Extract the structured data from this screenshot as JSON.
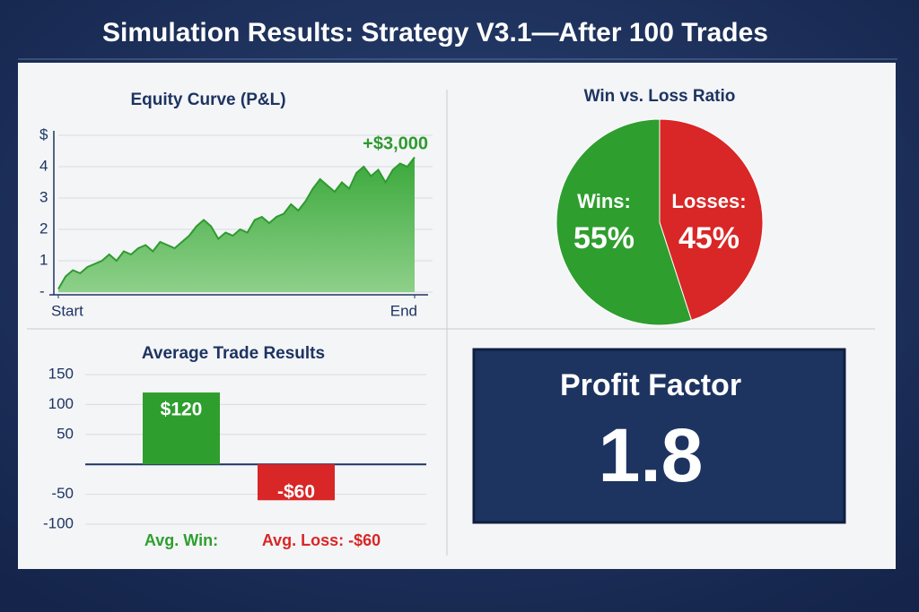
{
  "title": "Simulation Results: Strategy V3.1—After 100 Trades",
  "chart_data": [
    {
      "type": "area",
      "title": "Equity Curve (P&L)",
      "annotation": "+$3,000",
      "color": "#2f9a2f",
      "x": [
        0,
        1,
        2,
        3,
        4,
        5,
        6,
        7,
        8,
        9,
        10,
        11,
        12,
        13,
        14,
        15,
        16,
        17,
        18,
        19,
        20,
        21,
        22,
        23,
        24,
        25,
        26,
        27,
        28,
        29,
        30,
        31,
        32,
        33,
        34,
        35,
        36,
        37,
        38,
        39,
        40,
        41,
        42,
        43,
        44,
        45,
        46,
        47,
        48,
        49
      ],
      "values": [
        0.1,
        0.5,
        0.7,
        0.6,
        0.8,
        0.9,
        1.0,
        1.2,
        1.0,
        1.3,
        1.2,
        1.4,
        1.5,
        1.3,
        1.6,
        1.5,
        1.4,
        1.6,
        1.8,
        2.1,
        2.3,
        2.1,
        1.7,
        1.9,
        1.8,
        2.0,
        1.9,
        2.3,
        2.4,
        2.2,
        2.4,
        2.5,
        2.8,
        2.6,
        2.9,
        3.3,
        3.6,
        3.4,
        3.2,
        3.5,
        3.3,
        3.8,
        4.0,
        3.7,
        3.9,
        3.5,
        3.9,
        4.1,
        4.0,
        4.3
      ],
      "xlim": [
        0,
        49
      ],
      "xticks": [
        {
          "value": 0,
          "label": "Start"
        },
        {
          "value": 49,
          "label": "End"
        }
      ],
      "ylim": [
        0,
        5
      ],
      "yticks": [
        {
          "value": 0,
          "label": "-"
        },
        1,
        2,
        3,
        4,
        {
          "value": 5,
          "label": "$"
        }
      ],
      "grid": true
    },
    {
      "type": "pie",
      "title": "Win vs. Loss Ratio",
      "categories": [
        "Wins:",
        "Losses:"
      ],
      "values": [
        55,
        45
      ],
      "value_labels": [
        "55%",
        "45%"
      ],
      "colors": [
        "#2e9e2e",
        "#d92626"
      ]
    },
    {
      "type": "bar",
      "title": "Average Trade Results",
      "categories": [
        "Avg. Win:",
        "Avg. Loss: -$60"
      ],
      "values": [
        120,
        -60
      ],
      "value_labels": [
        "$120",
        "-$60"
      ],
      "colors": [
        "#2e9e2e",
        "#d92626"
      ],
      "ylim": [
        -100,
        150
      ],
      "yticks": [
        150,
        100,
        50,
        -50,
        -100
      ],
      "grid": true
    }
  ],
  "kpi": {
    "label": "Profit Factor",
    "value": 1.8
  }
}
